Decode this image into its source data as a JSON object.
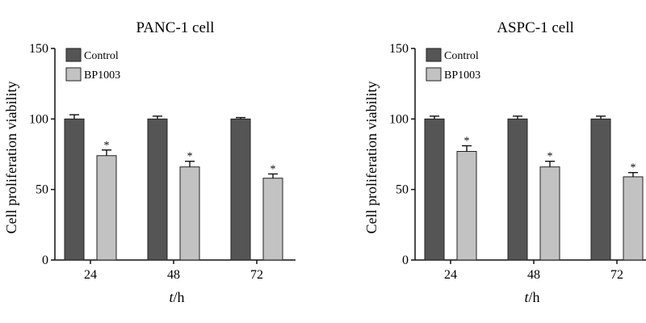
{
  "chart_data": [
    {
      "type": "bar",
      "title": "PANC-1 cell",
      "xlabel_italic": "t",
      "xlabel_rest": "/h",
      "ylabel": "Cell proliferation viability",
      "ylim": [
        0,
        150
      ],
      "yticks": [
        "0",
        "50",
        "100",
        "150"
      ],
      "categories": [
        "24",
        "48",
        "72"
      ],
      "legend_position": "top-left",
      "series": [
        {
          "name": "Control",
          "color": "#555555",
          "values": [
            100,
            100,
            100
          ],
          "errors": [
            3,
            2,
            1
          ]
        },
        {
          "name": "BP1003",
          "color": "#c2c2c2",
          "values": [
            74,
            66,
            58
          ],
          "errors": [
            4,
            4,
            3
          ]
        }
      ],
      "significance_marker": "*"
    },
    {
      "type": "bar",
      "title": "ASPC-1 cell",
      "xlabel_italic": "t",
      "xlabel_rest": "/h",
      "ylabel": "Cell proliferation viability",
      "ylim": [
        0,
        150
      ],
      "yticks": [
        "0",
        "50",
        "100",
        "150"
      ],
      "categories": [
        "24",
        "48",
        "72"
      ],
      "legend_position": "top-left",
      "series": [
        {
          "name": "Control",
          "color": "#555555",
          "values": [
            100,
            100,
            100
          ],
          "errors": [
            2,
            2,
            2
          ]
        },
        {
          "name": "BP1003",
          "color": "#c2c2c2",
          "values": [
            77,
            66,
            59
          ],
          "errors": [
            4,
            4,
            3
          ]
        }
      ],
      "significance_marker": "*"
    }
  ]
}
